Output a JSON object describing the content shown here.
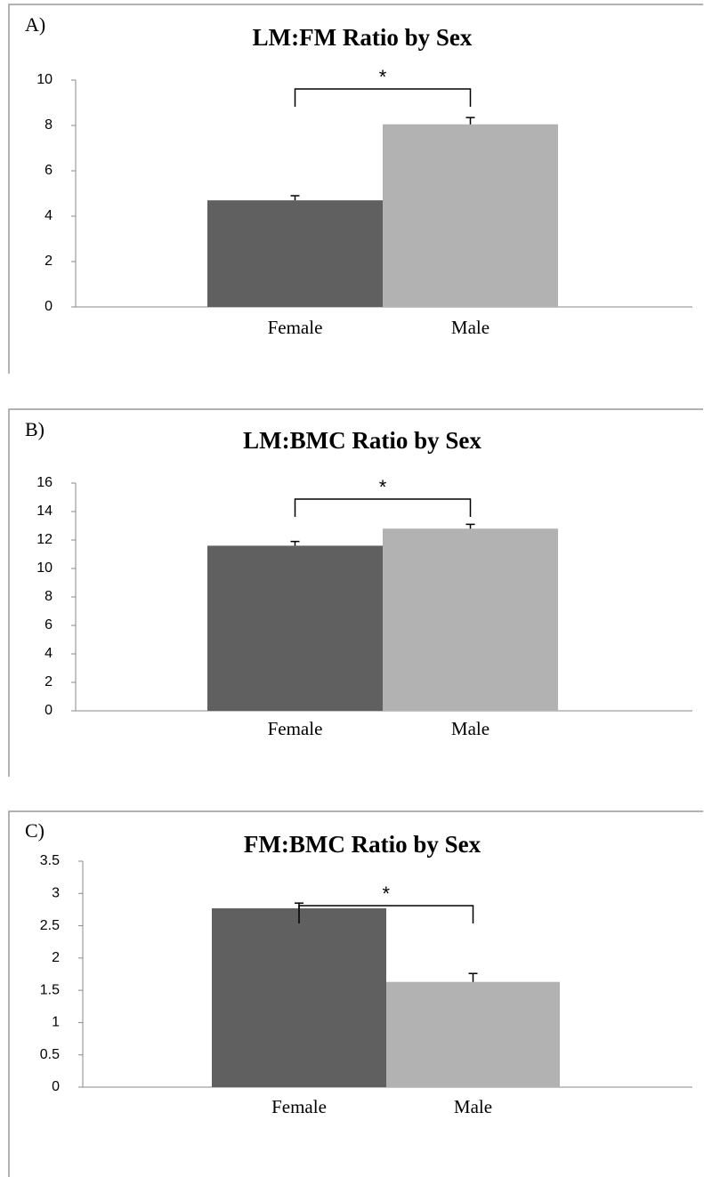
{
  "chart_data": [
    {
      "type": "bar",
      "panel_label": "A)",
      "title": "LM:FM Ratio by Sex",
      "categories": [
        "Female",
        "Male"
      ],
      "values": [
        4.7,
        8.05
      ],
      "errors": [
        0.2,
        0.3
      ],
      "colors": [
        "#606060",
        "#b2b2b2"
      ],
      "annotation": "*",
      "ylim": [
        0,
        10
      ],
      "yticks": [
        0,
        2,
        4,
        6,
        8,
        10
      ]
    },
    {
      "type": "bar",
      "panel_label": "B)",
      "title": "LM:BMC Ratio by Sex",
      "categories": [
        "Female",
        "Male"
      ],
      "values": [
        11.6,
        12.8
      ],
      "errors": [
        0.3,
        0.3
      ],
      "colors": [
        "#606060",
        "#b2b2b2"
      ],
      "annotation": "*",
      "ylim": [
        0,
        16
      ],
      "yticks": [
        0,
        2,
        4,
        6,
        8,
        10,
        12,
        14,
        16
      ]
    },
    {
      "type": "bar",
      "panel_label": "C)",
      "title": "FM:BMC Ratio by Sex",
      "categories": [
        "Female",
        "Male"
      ],
      "values": [
        2.77,
        1.63
      ],
      "errors": [
        0.08,
        0.13
      ],
      "colors": [
        "#606060",
        "#b2b2b2"
      ],
      "annotation": "*",
      "ylim": [
        0,
        3.5
      ],
      "yticks": [
        0,
        0.5,
        1,
        1.5,
        2,
        2.5,
        3,
        3.5
      ]
    }
  ]
}
